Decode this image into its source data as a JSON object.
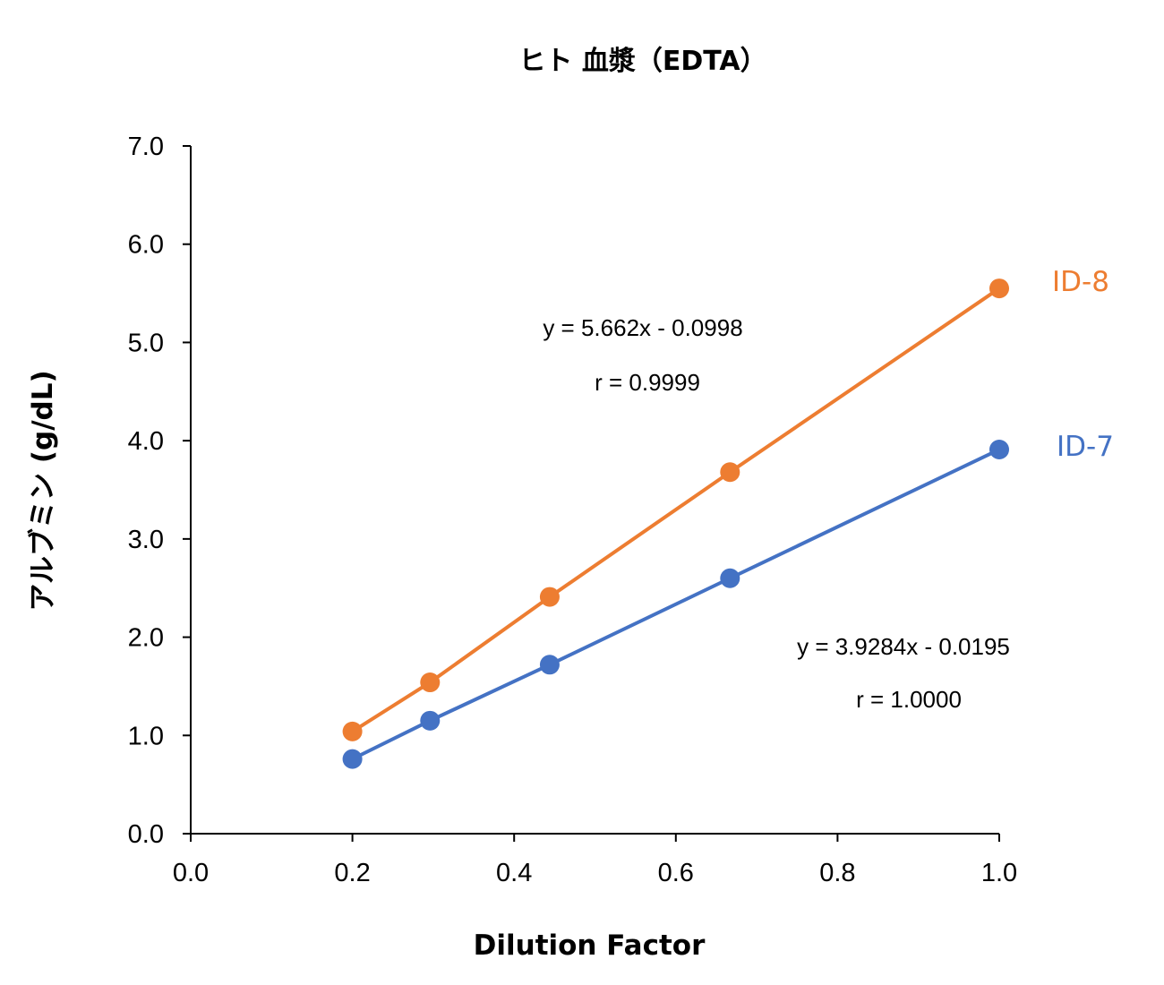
{
  "chart_data": {
    "type": "line",
    "title": "ヒト 血漿（EDTA）",
    "xlabel": "Dilution Factor",
    "ylabel": "アルブミン (g/dL)",
    "xlim": [
      0,
      1.0
    ],
    "ylim": [
      0,
      7.0
    ],
    "xticks": [
      0.0,
      0.2,
      0.4,
      0.6,
      0.8,
      1.0
    ],
    "yticks": [
      0.0,
      1.0,
      2.0,
      3.0,
      4.0,
      5.0,
      6.0,
      7.0
    ],
    "tick_decimals": 1,
    "grid": false,
    "legend": "none",
    "x": [
      0.2,
      0.296,
      0.444,
      0.667,
      1.0
    ],
    "series": [
      {
        "name": "ID-8",
        "color": "#ED7D31",
        "values": [
          1.04,
          1.54,
          2.41,
          3.68,
          5.55
        ],
        "equation": "y = 5.662x - 0.0998",
        "r": "r = 0.9999"
      },
      {
        "name": "ID-7",
        "color": "#4472C4",
        "values": [
          0.76,
          1.15,
          1.72,
          2.6,
          3.91
        ],
        "equation": "y = 3.9284x - 0.0195",
        "r": "r = 1.0000"
      }
    ]
  }
}
